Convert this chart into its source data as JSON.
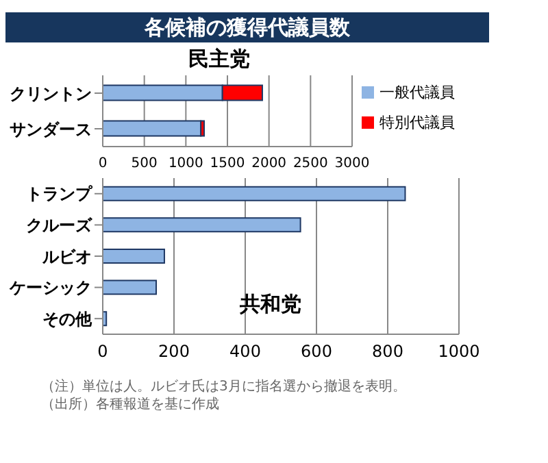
{
  "chart_data": [
    {
      "type": "bar",
      "orientation": "horizontal",
      "stacked": true,
      "title": "各候補の獲得代議員数",
      "subtitle": "民主党",
      "categories": [
        "クリントン",
        "サンダース"
      ],
      "series": [
        {
          "name": "一般代議員",
          "color": "#8eb4e3",
          "values": [
            1440,
            1180
          ]
        },
        {
          "name": "特別代議員",
          "color": "#ff0000",
          "values": [
            480,
            40
          ]
        }
      ],
      "xlim": [
        0,
        3000
      ],
      "xticks": [
        0,
        500,
        1000,
        1500,
        2000,
        2500,
        3000
      ],
      "grid": "x",
      "legend": "right"
    },
    {
      "type": "bar",
      "orientation": "horizontal",
      "subtitle": "共和党",
      "categories": [
        "トランプ",
        "クルーズ",
        "ルビオ",
        "ケーシック",
        "その他"
      ],
      "series": [
        {
          "color": "#8eb4e3",
          "values": [
            849,
            555,
            173,
            150,
            10
          ]
        }
      ],
      "xlim": [
        0,
        1000
      ],
      "xticks": [
        0,
        200,
        400,
        600,
        800,
        1000
      ],
      "grid": "x",
      "annotations": [
        "（注）単位は人。ルビオ氏は3月に指名選から撤退を表明。",
        "（出所）各種報道を基に作成"
      ]
    }
  ]
}
